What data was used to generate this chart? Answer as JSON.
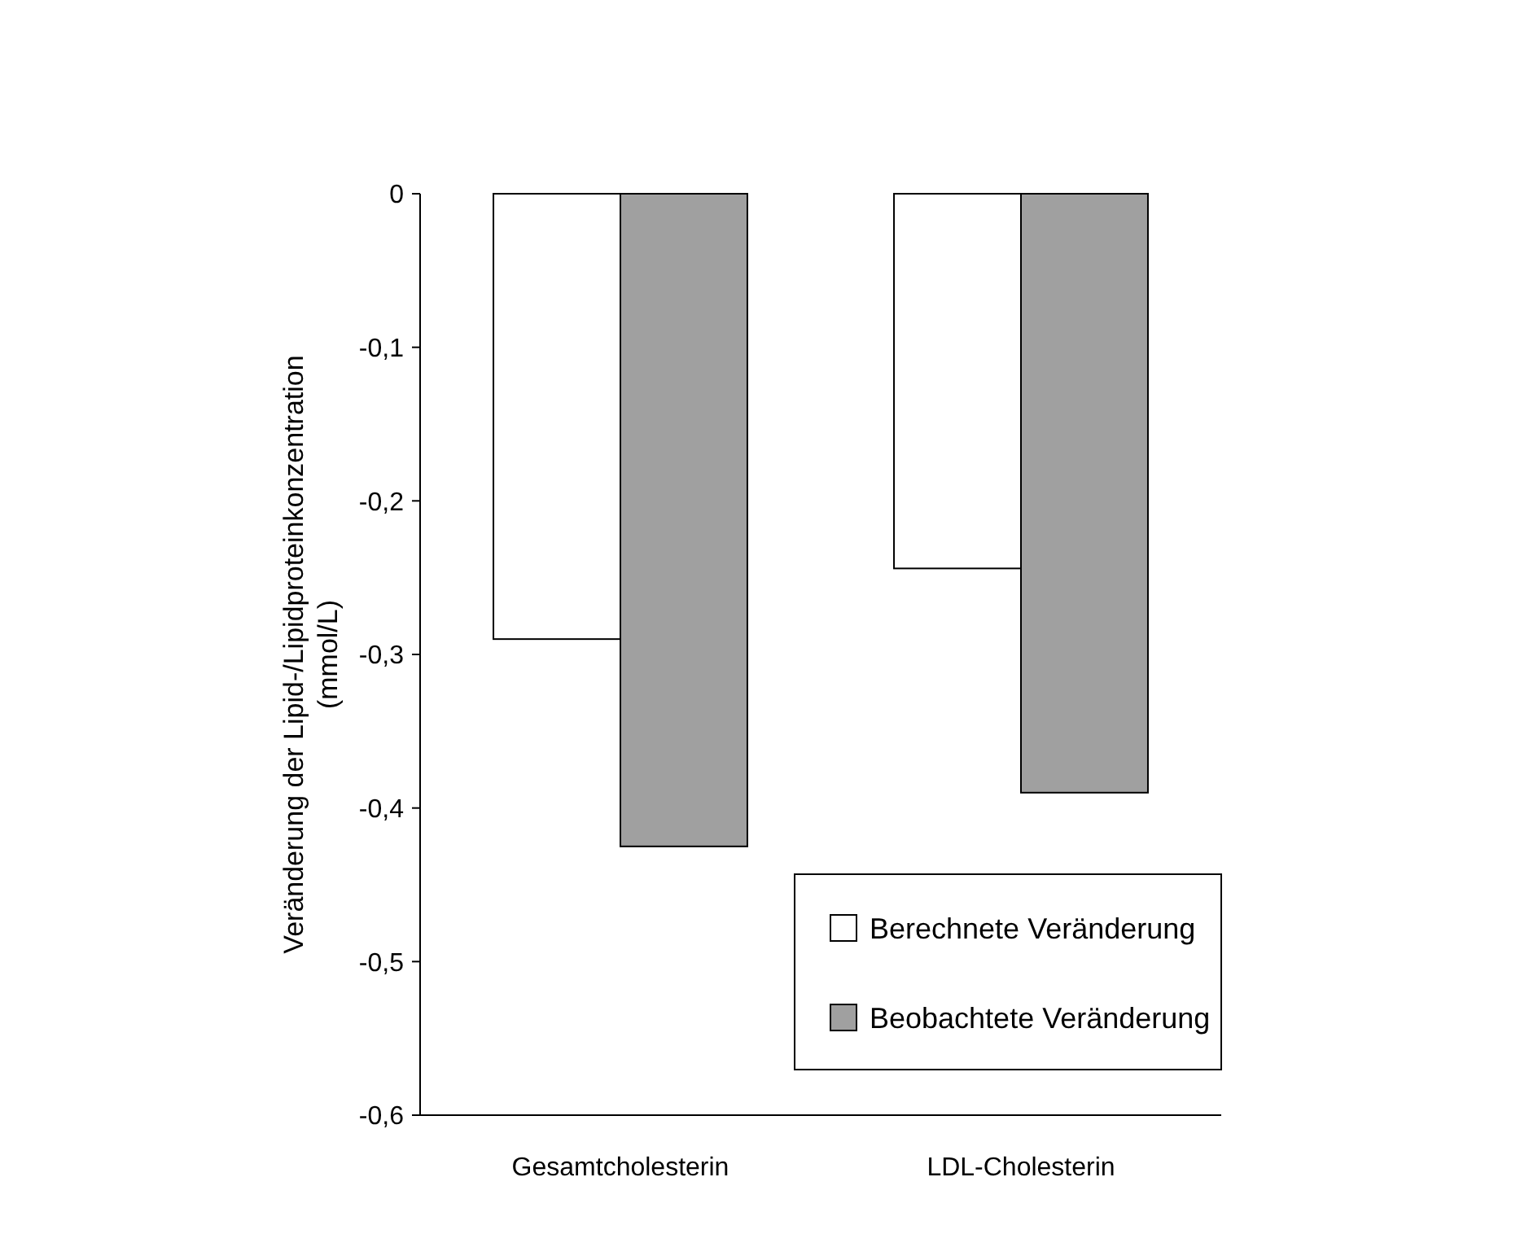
{
  "chart_data": {
    "type": "bar",
    "ylabel": "Veränderung der Lipid-/Lipidproteinkonzentration (mmol/L)",
    "categories": [
      "Gesamtcholesterin",
      "LDL-Cholesterin"
    ],
    "series": [
      {
        "name": "Berechnete Veränderung",
        "color": "#ffffff",
        "values": [
          -0.29,
          -0.244
        ]
      },
      {
        "name": "Beobachtete Veränderung",
        "color": "#a0a0a0",
        "values": [
          -0.425,
          -0.39
        ]
      }
    ],
    "ylim": [
      -0.6,
      0
    ],
    "yticks": [
      0,
      {
        "value": -0.1,
        "label": "-0,1"
      },
      {
        "value": -0.2,
        "label": "-0,2"
      },
      {
        "value": -0.3,
        "label": "-0,3"
      },
      {
        "value": -0.4,
        "label": "-0,4"
      },
      {
        "value": -0.5,
        "label": "-0,5"
      },
      {
        "value": -0.6,
        "label": "-0,6"
      }
    ],
    "grid": false,
    "legend": "bottom right"
  }
}
